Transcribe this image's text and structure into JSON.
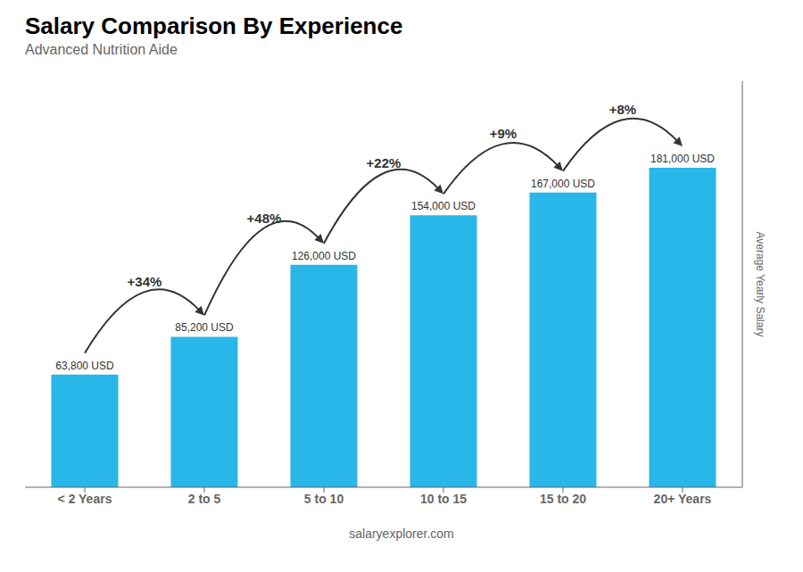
{
  "chart_data": {
    "type": "bar",
    "title": "Salary Comparison By Experience",
    "subtitle": "Advanced Nutrition Aide",
    "categories": [
      "< 2 Years",
      "2 to 5",
      "5 to 10",
      "10 to 15",
      "15 to 20",
      "20+ Years"
    ],
    "values": [
      63800,
      85200,
      126000,
      154000,
      167000,
      181000
    ],
    "value_labels": [
      "63,800 USD",
      "85,200 USD",
      "126,000 USD",
      "154,000 USD",
      "167,000 USD",
      "181,000 USD"
    ],
    "data_labels": true,
    "color": "#29b6e8",
    "ylabel": "Average Yearly Salary",
    "ylim": [
      0,
      230000
    ],
    "tick_labels": "x",
    "grid": false,
    "annotations": [
      {
        "text": "+34%",
        "from": "< 2 Years",
        "to": "2 to 5"
      },
      {
        "text": "+48%",
        "from": "2 to 5",
        "to": "5 to 10"
      },
      {
        "text": "+22%",
        "from": "5 to 10",
        "to": "10 to 15"
      },
      {
        "text": "+9%",
        "from": "10 to 15",
        "to": "15 to 20"
      },
      {
        "text": "+8%",
        "from": "15 to 20",
        "to": "20+ Years"
      },
      {
        "text": "salaryexplorer.com"
      }
    ]
  }
}
